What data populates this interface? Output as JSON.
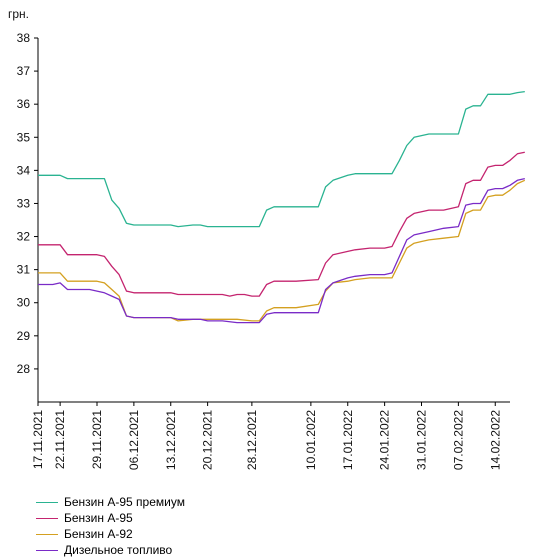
{
  "chart_data": {
    "type": "line",
    "ylabel": "грн.",
    "ylim": [
      27,
      38
    ],
    "yticks": [
      28,
      29,
      30,
      31,
      32,
      33,
      34,
      35,
      36,
      37,
      38
    ],
    "x_tick_labels": [
      "17.11.2021",
      "22.11.2021",
      "29.11.2021",
      "06.12.2021",
      "13.12.2021",
      "20.12.2021",
      "28.12.2021",
      "10.01.2022",
      "17.01.2022",
      "24.01.2022",
      "31.01.2022",
      "07.02.2022",
      "14.02.2022"
    ],
    "x_tick_index": [
      0,
      3,
      8,
      13,
      18,
      23,
      29,
      37,
      42,
      47,
      52,
      57,
      62
    ],
    "x_start": "17.11.2021",
    "x_end": "17.02.2022",
    "grid": false,
    "legend_position": "bottom-left",
    "series": [
      {
        "name": "Бензин А-95 премиум",
        "color": "#2ab391",
        "points": [
          [
            "17.11.2021",
            33.85
          ],
          [
            "19.11.2021",
            33.85
          ],
          [
            "22.11.2021",
            33.85
          ],
          [
            "23.11.2021",
            33.75
          ],
          [
            "26.11.2021",
            33.75
          ],
          [
            "29.11.2021",
            33.75
          ],
          [
            "30.11.2021",
            33.75
          ],
          [
            "01.12.2021",
            33.1
          ],
          [
            "02.12.2021",
            32.85
          ],
          [
            "03.12.2021",
            32.4
          ],
          [
            "06.12.2021",
            32.35
          ],
          [
            "08.12.2021",
            32.35
          ],
          [
            "10.12.2021",
            32.35
          ],
          [
            "13.12.2021",
            32.35
          ],
          [
            "14.12.2021",
            32.3
          ],
          [
            "16.12.2021",
            32.35
          ],
          [
            "17.12.2021",
            32.35
          ],
          [
            "20.12.2021",
            32.3
          ],
          [
            "22.12.2021",
            32.3
          ],
          [
            "24.12.2021",
            32.3
          ],
          [
            "28.12.2021",
            32.3
          ],
          [
            "29.12.2021",
            32.3
          ],
          [
            "30.12.2021",
            32.8
          ],
          [
            "31.12.2021",
            32.9
          ],
          [
            "05.01.2022",
            32.9
          ],
          [
            "10.01.2022",
            32.9
          ],
          [
            "11.01.2022",
            33.5
          ],
          [
            "12.01.2022",
            33.7
          ],
          [
            "14.01.2022",
            33.85
          ],
          [
            "17.01.2022",
            33.9
          ],
          [
            "19.01.2022",
            33.9
          ],
          [
            "21.01.2022",
            33.9
          ],
          [
            "24.01.2022",
            33.9
          ],
          [
            "25.01.2022",
            34.3
          ],
          [
            "26.01.2022",
            34.75
          ],
          [
            "27.01.2022",
            35.0
          ],
          [
            "28.01.2022",
            35.05
          ],
          [
            "31.01.2022",
            35.1
          ],
          [
            "02.02.2022",
            35.1
          ],
          [
            "04.02.2022",
            35.1
          ],
          [
            "07.02.2022",
            35.85
          ],
          [
            "08.02.2022",
            35.95
          ],
          [
            "09.02.2022",
            35.95
          ],
          [
            "10.02.2022",
            36.3
          ],
          [
            "11.02.2022",
            36.3
          ],
          [
            "14.02.2022",
            36.3
          ],
          [
            "15.02.2022",
            36.3
          ],
          [
            "16.02.2022",
            36.35
          ],
          [
            "17.02.2022",
            36.38
          ]
        ]
      },
      {
        "name": "Бензин А-95",
        "color": "#c4246f",
        "points": [
          [
            "17.11.2021",
            31.75
          ],
          [
            "19.11.2021",
            31.75
          ],
          [
            "22.11.2021",
            31.75
          ],
          [
            "23.11.2021",
            31.45
          ],
          [
            "26.11.2021",
            31.45
          ],
          [
            "29.11.2021",
            31.45
          ],
          [
            "30.11.2021",
            31.4
          ],
          [
            "01.12.2021",
            31.1
          ],
          [
            "02.12.2021",
            30.85
          ],
          [
            "03.12.2021",
            30.35
          ],
          [
            "06.12.2021",
            30.3
          ],
          [
            "08.12.2021",
            30.3
          ],
          [
            "10.12.2021",
            30.3
          ],
          [
            "13.12.2021",
            30.3
          ],
          [
            "14.12.2021",
            30.25
          ],
          [
            "16.12.2021",
            30.25
          ],
          [
            "17.12.2021",
            30.25
          ],
          [
            "20.12.2021",
            30.25
          ],
          [
            "22.12.2021",
            30.25
          ],
          [
            "23.12.2021",
            30.2
          ],
          [
            "24.12.2021",
            30.25
          ],
          [
            "27.12.2021",
            30.25
          ],
          [
            "28.12.2021",
            30.2
          ],
          [
            "29.12.2021",
            30.2
          ],
          [
            "30.12.2021",
            30.55
          ],
          [
            "31.12.2021",
            30.65
          ],
          [
            "05.01.2022",
            30.65
          ],
          [
            "10.01.2022",
            30.7
          ],
          [
            "11.01.2022",
            31.2
          ],
          [
            "12.01.2022",
            31.45
          ],
          [
            "14.01.2022",
            31.55
          ],
          [
            "17.01.2022",
            31.6
          ],
          [
            "19.01.2022",
            31.65
          ],
          [
            "21.01.2022",
            31.65
          ],
          [
            "24.01.2022",
            31.7
          ],
          [
            "25.01.2022",
            32.15
          ],
          [
            "26.01.2022",
            32.55
          ],
          [
            "27.01.2022",
            32.7
          ],
          [
            "28.01.2022",
            32.75
          ],
          [
            "31.01.2022",
            32.8
          ],
          [
            "02.02.2022",
            32.8
          ],
          [
            "04.02.2022",
            32.9
          ],
          [
            "07.02.2022",
            33.6
          ],
          [
            "08.02.2022",
            33.7
          ],
          [
            "09.02.2022",
            33.7
          ],
          [
            "10.02.2022",
            34.1
          ],
          [
            "11.02.2022",
            34.15
          ],
          [
            "14.02.2022",
            34.15
          ],
          [
            "15.02.2022",
            34.3
          ],
          [
            "16.02.2022",
            34.5
          ],
          [
            "17.02.2022",
            34.55
          ]
        ]
      },
      {
        "name": "Бензин А-92",
        "color": "#d4a020",
        "points": [
          [
            "17.11.2021",
            30.9
          ],
          [
            "19.11.2021",
            30.9
          ],
          [
            "22.11.2021",
            30.9
          ],
          [
            "23.11.2021",
            30.65
          ],
          [
            "26.11.2021",
            30.65
          ],
          [
            "29.11.2021",
            30.65
          ],
          [
            "30.11.2021",
            30.6
          ],
          [
            "01.12.2021",
            30.4
          ],
          [
            "02.12.2021",
            30.2
          ],
          [
            "03.12.2021",
            29.6
          ],
          [
            "06.12.2021",
            29.55
          ],
          [
            "08.12.2021",
            29.55
          ],
          [
            "10.12.2021",
            29.55
          ],
          [
            "13.12.2021",
            29.55
          ],
          [
            "14.12.2021",
            29.45
          ],
          [
            "16.12.2021",
            29.5
          ],
          [
            "17.12.2021",
            29.5
          ],
          [
            "20.12.2021",
            29.5
          ],
          [
            "22.12.2021",
            29.5
          ],
          [
            "24.12.2021",
            29.5
          ],
          [
            "28.12.2021",
            29.45
          ],
          [
            "29.12.2021",
            29.45
          ],
          [
            "30.12.2021",
            29.75
          ],
          [
            "31.12.2021",
            29.85
          ],
          [
            "05.01.2022",
            29.85
          ],
          [
            "10.01.2022",
            29.95
          ],
          [
            "11.01.2022",
            30.35
          ],
          [
            "12.01.2022",
            30.6
          ],
          [
            "14.01.2022",
            30.65
          ],
          [
            "17.01.2022",
            30.7
          ],
          [
            "19.01.2022",
            30.75
          ],
          [
            "21.01.2022",
            30.75
          ],
          [
            "24.01.2022",
            30.75
          ],
          [
            "25.01.2022",
            31.2
          ],
          [
            "26.01.2022",
            31.65
          ],
          [
            "27.01.2022",
            31.8
          ],
          [
            "28.01.2022",
            31.85
          ],
          [
            "31.01.2022",
            31.9
          ],
          [
            "02.02.2022",
            31.95
          ],
          [
            "04.02.2022",
            32.0
          ],
          [
            "07.02.2022",
            32.7
          ],
          [
            "08.02.2022",
            32.8
          ],
          [
            "09.02.2022",
            32.8
          ],
          [
            "10.02.2022",
            33.2
          ],
          [
            "11.02.2022",
            33.25
          ],
          [
            "14.02.2022",
            33.25
          ],
          [
            "15.02.2022",
            33.4
          ],
          [
            "16.02.2022",
            33.6
          ],
          [
            "17.02.2022",
            33.7
          ]
        ]
      },
      {
        "name": "Дизельное топливо",
        "color": "#7a2bc7",
        "points": [
          [
            "17.11.2021",
            30.55
          ],
          [
            "19.11.2021",
            30.55
          ],
          [
            "22.11.2021",
            30.6
          ],
          [
            "23.11.2021",
            30.4
          ],
          [
            "26.11.2021",
            30.4
          ],
          [
            "29.11.2021",
            30.35
          ],
          [
            "30.11.2021",
            30.3
          ],
          [
            "01.12.2021",
            30.2
          ],
          [
            "02.12.2021",
            30.1
          ],
          [
            "03.12.2021",
            29.6
          ],
          [
            "06.12.2021",
            29.55
          ],
          [
            "08.12.2021",
            29.55
          ],
          [
            "10.12.2021",
            29.55
          ],
          [
            "13.12.2021",
            29.55
          ],
          [
            "14.12.2021",
            29.5
          ],
          [
            "16.12.2021",
            29.5
          ],
          [
            "17.12.2021",
            29.5
          ],
          [
            "20.12.2021",
            29.45
          ],
          [
            "22.12.2021",
            29.45
          ],
          [
            "24.12.2021",
            29.4
          ],
          [
            "28.12.2021",
            29.4
          ],
          [
            "29.12.2021",
            29.4
          ],
          [
            "30.12.2021",
            29.65
          ],
          [
            "31.12.2021",
            29.7
          ],
          [
            "05.01.2022",
            29.7
          ],
          [
            "10.01.2022",
            29.7
          ],
          [
            "11.01.2022",
            30.4
          ],
          [
            "12.01.2022",
            30.6
          ],
          [
            "14.01.2022",
            30.75
          ],
          [
            "17.01.2022",
            30.8
          ],
          [
            "19.01.2022",
            30.85
          ],
          [
            "21.01.2022",
            30.85
          ],
          [
            "24.01.2022",
            30.9
          ],
          [
            "25.01.2022",
            31.4
          ],
          [
            "26.01.2022",
            31.9
          ],
          [
            "27.01.2022",
            32.05
          ],
          [
            "28.01.2022",
            32.1
          ],
          [
            "31.01.2022",
            32.15
          ],
          [
            "02.02.2022",
            32.25
          ],
          [
            "04.02.2022",
            32.3
          ],
          [
            "07.02.2022",
            32.95
          ],
          [
            "08.02.2022",
            33.0
          ],
          [
            "09.02.2022",
            33.0
          ],
          [
            "10.02.2022",
            33.4
          ],
          [
            "11.02.2022",
            33.45
          ],
          [
            "14.02.2022",
            33.45
          ],
          [
            "15.02.2022",
            33.55
          ],
          [
            "16.02.2022",
            33.7
          ],
          [
            "17.02.2022",
            33.75
          ]
        ]
      }
    ]
  }
}
